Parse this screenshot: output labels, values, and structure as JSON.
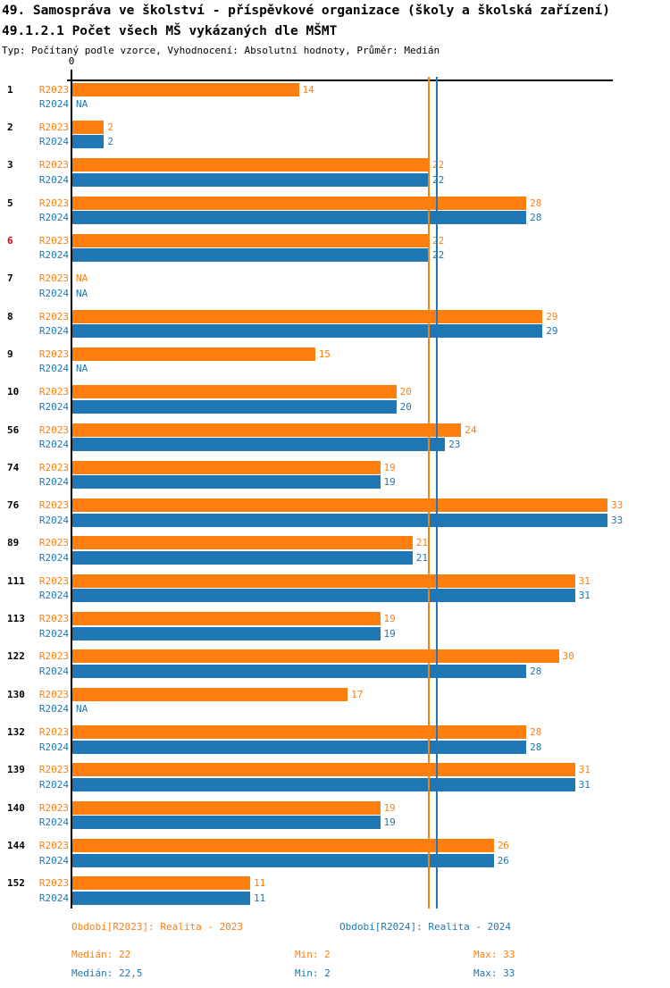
{
  "chart_data": {
    "type": "bar",
    "orientation": "horizontal",
    "title": "49. Samospráva ve školství - příspěvkové organizace (školy a školská zařízení)",
    "subtitle": "49.1.2.1 Počet všech MŠ vykázaných dle MŠMT",
    "note": "Typ: Počítaný podle vzorce, Vyhodnocení: Absolutní hodnoty, Průměr: Medián",
    "x_origin_label": "0",
    "xlim": [
      0,
      33
    ],
    "na_text": "NA",
    "grid": false,
    "legend_position": "bottom",
    "highlight_color": "#e00000",
    "series": [
      {
        "key": "r2023",
        "label": "R2023",
        "legend": "Období[R2023]: Realita - 2023",
        "color": "#ff7f0e",
        "median": 22,
        "stats": {
          "median": "Medián: 22",
          "min": "Min: 2",
          "max": "Max: 33"
        }
      },
      {
        "key": "r2024",
        "label": "R2024",
        "legend": "Období[R2024]: Realita - 2024",
        "color": "#1f77b4",
        "median": 22.5,
        "stats": {
          "median": "Medián: 22,5",
          "min": "Min: 2",
          "max": "Max: 33"
        }
      }
    ],
    "categories": [
      {
        "id": "1",
        "highlight": false,
        "r2023": 14,
        "r2024": null
      },
      {
        "id": "2",
        "highlight": false,
        "r2023": 2,
        "r2024": 2
      },
      {
        "id": "3",
        "highlight": false,
        "r2023": 22,
        "r2024": 22
      },
      {
        "id": "5",
        "highlight": false,
        "r2023": 28,
        "r2024": 28
      },
      {
        "id": "6",
        "highlight": true,
        "r2023": 22,
        "r2024": 22
      },
      {
        "id": "7",
        "highlight": false,
        "r2023": null,
        "r2024": null
      },
      {
        "id": "8",
        "highlight": false,
        "r2023": 29,
        "r2024": 29
      },
      {
        "id": "9",
        "highlight": false,
        "r2023": 15,
        "r2024": null
      },
      {
        "id": "10",
        "highlight": false,
        "r2023": 20,
        "r2024": 20
      },
      {
        "id": "56",
        "highlight": false,
        "r2023": 24,
        "r2024": 23
      },
      {
        "id": "74",
        "highlight": false,
        "r2023": 19,
        "r2024": 19
      },
      {
        "id": "76",
        "highlight": false,
        "r2023": 33,
        "r2024": 33
      },
      {
        "id": "89",
        "highlight": false,
        "r2023": 21,
        "r2024": 21
      },
      {
        "id": "111",
        "highlight": false,
        "r2023": 31,
        "r2024": 31
      },
      {
        "id": "113",
        "highlight": false,
        "r2023": 19,
        "r2024": 19
      },
      {
        "id": "122",
        "highlight": false,
        "r2023": 30,
        "r2024": 28
      },
      {
        "id": "130",
        "highlight": false,
        "r2023": 17,
        "r2024": null
      },
      {
        "id": "132",
        "highlight": false,
        "r2023": 28,
        "r2024": 28
      },
      {
        "id": "139",
        "highlight": false,
        "r2023": 31,
        "r2024": 31
      },
      {
        "id": "140",
        "highlight": false,
        "r2023": 19,
        "r2024": 19
      },
      {
        "id": "144",
        "highlight": false,
        "r2023": 26,
        "r2024": 26
      },
      {
        "id": "152",
        "highlight": false,
        "r2023": 11,
        "r2024": 11
      }
    ]
  }
}
